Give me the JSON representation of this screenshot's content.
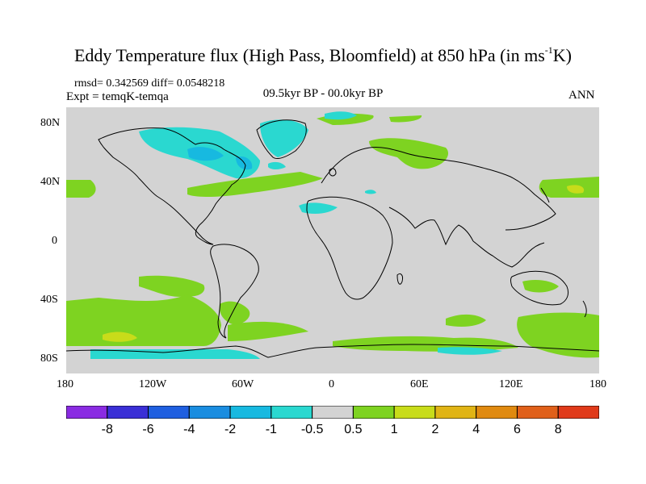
{
  "title_main": "Eddy Temperature flux (High Pass, Bloomfield) at 850 hPa (in ms",
  "title_exp": "-1",
  "title_tail": "K)",
  "stats": "rmsd= 0.342569  diff= 0.0548218",
  "expt": "Expt = temqK-temqa",
  "period": "09.5kyr BP - 00.0kyr BP",
  "season": "ANN",
  "lat_labels": [
    "80N",
    "40N",
    "0",
    "40S",
    "80S"
  ],
  "lon_labels": [
    "180",
    "120W",
    "60W",
    "0",
    "60E",
    "120E",
    "180"
  ],
  "colorbar": {
    "labels": [
      "-8",
      "-6",
      "-4",
      "-2",
      "-1",
      "-0.5",
      "0.5",
      "1",
      "2",
      "4",
      "6",
      "8"
    ],
    "colors": [
      "#8a2be2",
      "#3a2fd6",
      "#1f5fe0",
      "#1a8de0",
      "#17b9e0",
      "#2ad8d0",
      "#d3d3d3",
      "#7ed321",
      "#c8dc1a",
      "#e0b415",
      "#e08a10",
      "#e0601a",
      "#e03a1a"
    ]
  },
  "colors": {
    "ocean_bg": "#d3d3d3",
    "coast": "#000000",
    "pos1": "#7ed321",
    "pos2": "#c8dc1a",
    "neg1": "#2ad8d0",
    "neg2": "#17b9e0",
    "neg3": "#1a8de0"
  }
}
